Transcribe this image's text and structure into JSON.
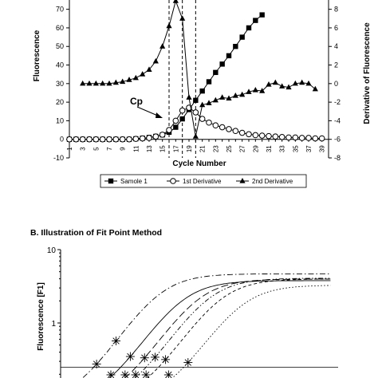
{
  "chart_data": [
    {
      "type": "line",
      "xlabel": "Cycle Number",
      "ylabel": "Fluorescence",
      "y2label": "Derivative of Fluorescence",
      "xlim": [
        1,
        40
      ],
      "ylim": [
        -10,
        75
      ],
      "y2lim": [
        -8,
        9
      ],
      "x_ticks": [
        1,
        3,
        5,
        7,
        9,
        11,
        13,
        15,
        17,
        19,
        21,
        23,
        25,
        27,
        29,
        31,
        33,
        35,
        37,
        39
      ],
      "y_ticks": [
        -10,
        0,
        10,
        20,
        30,
        40,
        50,
        60,
        70
      ],
      "y2_ticks": [
        -8,
        -6,
        -4,
        -2,
        0,
        2,
        4,
        6,
        8
      ],
      "annotation": "Cp",
      "vlines": [
        16,
        18,
        20
      ],
      "legend": {
        "position": "bottom",
        "labels": [
          "Samole 1",
          "1st Derivative",
          "2nd Derivative"
        ]
      },
      "series": [
        {
          "name": "Samole 1",
          "marker": "filled-square",
          "axis": "left",
          "x": [
            1,
            2,
            3,
            4,
            5,
            6,
            7,
            8,
            9,
            10,
            11,
            12,
            13,
            14,
            15,
            16,
            17,
            18,
            19,
            20,
            21,
            22,
            23,
            24,
            25,
            26,
            27,
            28,
            29,
            30
          ],
          "values": [
            0,
            0,
            0,
            0,
            0,
            0,
            0,
            0,
            0,
            0,
            0.3,
            0.6,
            1,
            1.6,
            2.4,
            3.8,
            6.5,
            11,
            16,
            21,
            26,
            31,
            36,
            40.5,
            45,
            50,
            55,
            60,
            64,
            67
          ]
        },
        {
          "name": "1st Derivative",
          "marker": "open-circle",
          "axis": "right",
          "x": [
            1,
            2,
            3,
            4,
            5,
            6,
            7,
            8,
            9,
            10,
            11,
            12,
            13,
            14,
            15,
            16,
            17,
            18,
            19,
            20,
            21,
            22,
            23,
            24,
            25,
            26,
            27,
            28,
            29,
            30,
            31,
            32,
            33,
            34,
            35,
            36,
            37,
            38,
            39
          ],
          "values": [
            -6,
            -6,
            -6,
            -6,
            -6,
            -6,
            -6,
            -6,
            -6,
            -6,
            -5.95,
            -5.9,
            -5.85,
            -5.7,
            -5.5,
            -5.0,
            -4.0,
            -2.9,
            -2.6,
            -3.1,
            -3.8,
            -4.2,
            -4.5,
            -4.7,
            -4.9,
            -5.1,
            -5.3,
            -5.45,
            -5.55,
            -5.6,
            -5.65,
            -5.7,
            -5.75,
            -5.8,
            -5.8,
            -5.85,
            -5.85,
            -5.9,
            -5.9
          ]
        },
        {
          "name": "2nd Derivative",
          "marker": "filled-triangle",
          "axis": "right",
          "x": [
            3,
            4,
            5,
            6,
            7,
            8,
            9,
            10,
            11,
            12,
            13,
            14,
            15,
            16,
            17,
            18,
            19,
            20,
            21,
            22,
            23,
            24,
            25,
            26,
            27,
            28,
            29,
            30,
            31,
            32,
            33,
            34,
            35,
            36,
            37,
            38
          ],
          "values": [
            0,
            0,
            0,
            0,
            0,
            0.1,
            0.2,
            0.4,
            0.6,
            1.0,
            1.5,
            2.4,
            4.0,
            6.2,
            8.9,
            7.0,
            -1.5,
            -5.7,
            -2.3,
            -2.1,
            -1.8,
            -1.5,
            -1.6,
            -1.3,
            -1.2,
            -0.9,
            -0.7,
            -0.8,
            -0.1,
            0.1,
            -0.3,
            -0.4,
            0.0,
            0.1,
            0.0,
            -0.6
          ]
        }
      ]
    },
    {
      "type": "line",
      "title": "B. Illustration of Fit Point Method",
      "ylabel": "Fluorescence [F1]",
      "y_scale": "log",
      "y_ticks": [
        1,
        10
      ],
      "y_tick_labels": [
        "1",
        "10"
      ],
      "noise_band_level": 0.25,
      "series": [
        {
          "style": "dash-dot",
          "midpoint": 14.0,
          "plateau": 4.6,
          "crossing_cycle": 8.4,
          "start_cycle": 4
        },
        {
          "style": "solid",
          "midpoint": 17.0,
          "plateau": 3.7,
          "crossing_cycle": 10.3,
          "start_cycle": 6
        },
        {
          "style": "long-dash",
          "midpoint": 19.2,
          "plateau": 3.9,
          "crossing_cycle": 12.2,
          "start_cycle": 7.5
        },
        {
          "style": "dash-dot-dot",
          "midpoint": 20.6,
          "plateau": 4.0,
          "crossing_cycle": 13.6,
          "start_cycle": 9
        },
        {
          "style": "short-dash",
          "midpoint": 22.2,
          "plateau": 3.9,
          "crossing_cycle": 15.0,
          "start_cycle": 10.5
        },
        {
          "style": "dotted",
          "midpoint": 25.0,
          "plateau": 3.2,
          "crossing_cycle": 18.0,
          "start_cycle": 13
        }
      ]
    }
  ]
}
